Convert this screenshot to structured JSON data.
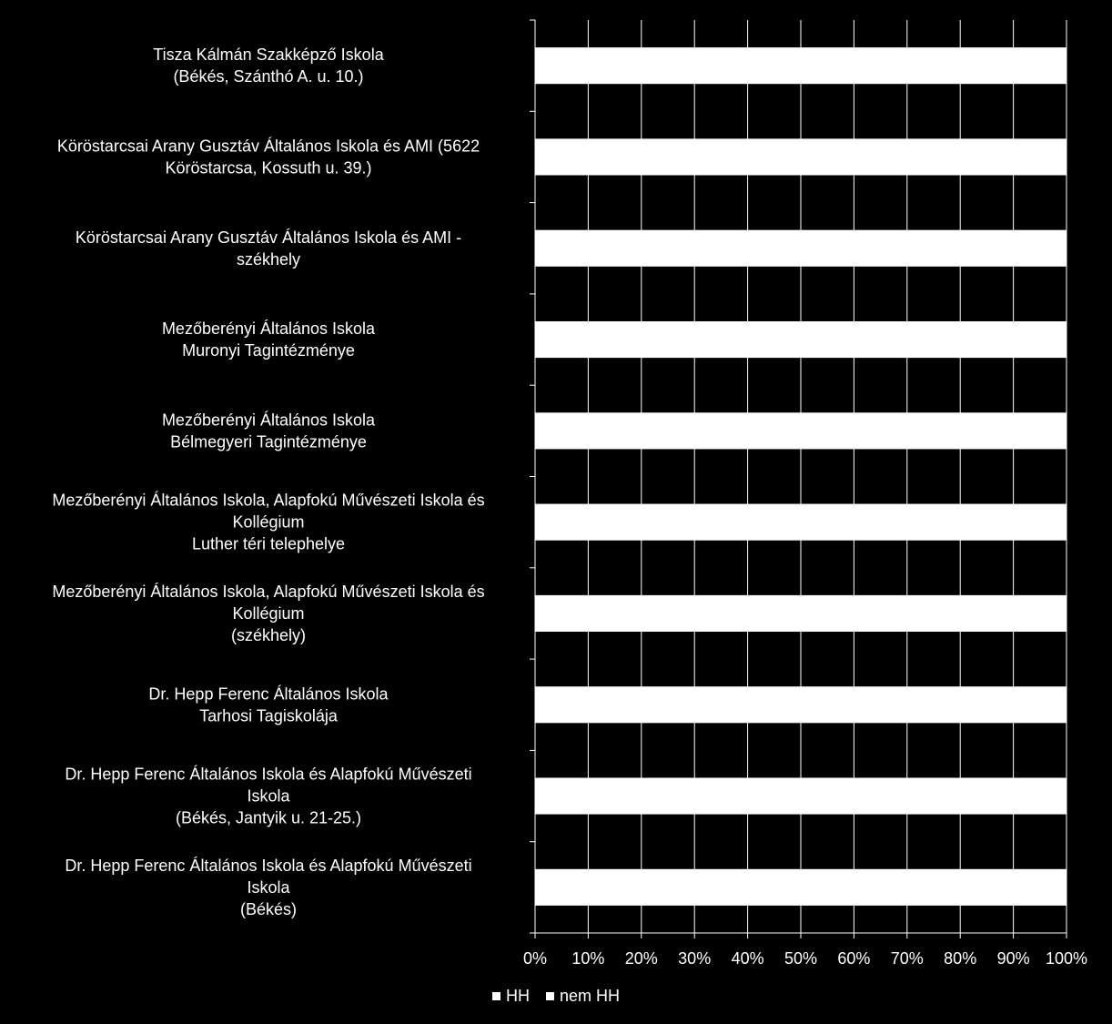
{
  "chart_data": {
    "type": "bar",
    "orientation": "horizontal",
    "stacked": true,
    "percent": true,
    "categories": [
      [
        "Tisza Kálmán Szakképző Iskola",
        "(Békés, Szánthó A. u. 10.)"
      ],
      [
        "Köröstarcsai Arany Gusztáv Általános Iskola és AMI (5622",
        "Köröstarcsa, Kossuth u. 39.)"
      ],
      [
        "Köröstarcsai Arany Gusztáv Általános Iskola és AMI -",
        "székhely"
      ],
      [
        "Mezőberényi Általános Iskola",
        "Muronyi Tagintézménye"
      ],
      [
        "Mezőberényi Általános Iskola",
        "Bélmegyeri Tagintézménye"
      ],
      [
        "Mezőberényi Általános Iskola, Alapfokú Művészeti Iskola és",
        "Kollégium",
        "Luther téri telephelye"
      ],
      [
        "Mezőberényi Általános Iskola, Alapfokú Művészeti Iskola és",
        "Kollégium",
        "(székhely)"
      ],
      [
        "Dr. Hepp Ferenc Általános Iskola",
        "Tarhosi Tagiskolája"
      ],
      [
        "Dr. Hepp Ferenc Általános Iskola és Alapfokú Művészeti",
        "Iskola",
        "(Békés, Jantyik u. 21-25.)"
      ],
      [
        "Dr. Hepp Ferenc Általános Iskola és Alapfokú Művészeti",
        "Iskola",
        "(Békés)"
      ]
    ],
    "series": [
      {
        "name": "HH",
        "values": [
          0,
          0,
          0,
          0,
          0,
          0,
          0,
          0,
          0,
          0
        ]
      },
      {
        "name": "nem HH",
        "values": [
          100,
          100,
          100,
          100,
          100,
          100,
          100,
          100,
          100,
          100
        ]
      }
    ],
    "xlim": [
      0,
      100
    ],
    "xticks": [
      "0%",
      "10%",
      "20%",
      "30%",
      "40%",
      "50%",
      "60%",
      "70%",
      "80%",
      "90%",
      "100%"
    ],
    "grid": true,
    "legend_position": "bottom",
    "colors": {
      "background": "#000000",
      "bar": "#ffffff",
      "grid": "#ffffff",
      "text": "#ffffff"
    }
  }
}
